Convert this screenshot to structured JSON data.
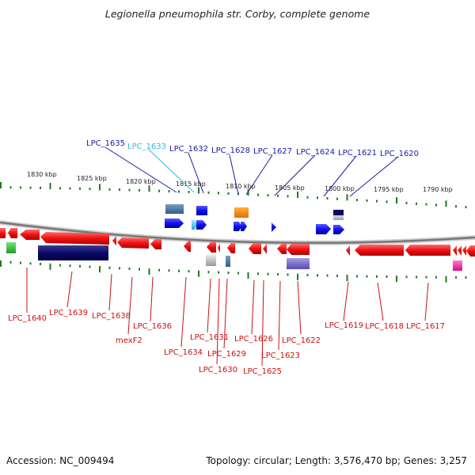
{
  "title": "Legionella pneumophila str. Corby, complete genome",
  "footer": {
    "accession": "Accession: NC_009494",
    "topology": "Topology: circular; Length: 3,576,470 bp; Genes: 3,257"
  },
  "scale_labels": [
    "1830 kbp",
    "1825 kbp",
    "1820 kbp",
    "1815 kbp",
    "1810 kbp",
    "1805 kbp",
    "1800 kbp",
    "1795 kbp",
    "1790 kbp"
  ],
  "colors": {
    "backbone": "#7f7f7f",
    "tick": "#1f7a1f",
    "forward_label": "#1a1aa8",
    "reverse_label": "#cc1111",
    "cyan_label": "#33bbdd",
    "forward_gene": "#1010ee",
    "reverse_gene": "#ee1111"
  },
  "top_labels": [
    {
      "text": "LPC_1635",
      "color": "#1a1aa8"
    },
    {
      "text": "LPC_1633",
      "color": "#33bbdd"
    },
    {
      "text": "LPC_1632",
      "color": "#1a1aa8"
    },
    {
      "text": "LPC_1628",
      "color": "#1a1aa8"
    },
    {
      "text": "LPC_1627",
      "color": "#1a1aa8"
    },
    {
      "text": "LPC_1624",
      "color": "#1a1aa8"
    },
    {
      "text": "LPC_1621",
      "color": "#1a1aa8"
    },
    {
      "text": "LPC_1620",
      "color": "#1a1aa8"
    }
  ],
  "bottom_labels": [
    "LPC_1640",
    "LPC_1639",
    "LPC_1638",
    "mexF2",
    "LPC_1636",
    "LPC_1634",
    "LPC_1631",
    "LPC_1630",
    "LPC_1629",
    "LPC_1626",
    "LPC_1625",
    "LPC_1623",
    "LPC_1622",
    "LPC_1619",
    "LPC_1618",
    "LPC_1617"
  ]
}
